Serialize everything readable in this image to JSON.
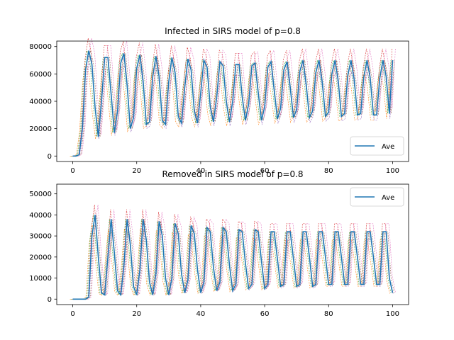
{
  "colors": {
    "ave": "#1f77b4",
    "runs": [
      "#ff7f0e",
      "#2ca02c",
      "#d62728",
      "#9467bd",
      "#8c564b",
      "#e377c2",
      "#7f7f7f",
      "#bcbd22",
      "#17becf"
    ]
  },
  "chart_data": [
    {
      "type": "line",
      "title": "Infected in SIRS model of p=0.8",
      "xlabel": "",
      "ylabel": "",
      "xlim": [
        -5,
        105
      ],
      "ylim": [
        -4000,
        84000
      ],
      "xticks": [
        0,
        20,
        40,
        60,
        80,
        100
      ],
      "yticks": [
        0,
        20000,
        40000,
        60000,
        80000
      ],
      "xtick_labels": [
        "0",
        "20",
        "40",
        "60",
        "80",
        "100"
      ],
      "ytick_labels": [
        "0",
        "20000",
        "40000",
        "60000",
        "80000"
      ],
      "legend": {
        "position": "lower right",
        "entries": [
          "Ave"
        ]
      },
      "grid": false,
      "series": [
        {
          "name": "Ave",
          "style": "solid",
          "x": [
            0,
            1,
            2,
            3,
            4,
            5,
            6,
            7,
            8,
            9,
            10,
            11,
            12,
            13,
            14,
            15,
            16,
            17,
            18,
            19,
            20,
            21,
            22,
            23,
            24,
            25,
            26,
            27,
            28,
            29,
            30,
            31,
            32,
            33,
            34,
            35,
            36,
            37,
            38,
            39,
            40,
            41,
            42,
            43,
            44,
            45,
            46,
            47,
            48,
            49,
            50,
            51,
            52,
            53,
            54,
            55,
            56,
            57,
            58,
            59,
            60,
            61,
            62,
            63,
            64,
            65,
            66,
            67,
            68,
            69,
            70,
            71,
            72,
            73,
            74,
            75,
            76,
            77,
            78,
            79,
            80,
            81,
            82,
            83,
            84,
            85,
            86,
            87,
            88,
            89,
            90,
            91,
            92,
            93,
            94,
            95,
            96,
            97,
            98,
            99,
            100
          ],
          "y": [
            0,
            0,
            1000,
            20000,
            63000,
            77000,
            67000,
            35000,
            14000,
            40000,
            72000,
            72000,
            45000,
            17000,
            33000,
            68000,
            75000,
            52000,
            20000,
            28000,
            64000,
            74000,
            55000,
            23000,
            25000,
            58000,
            73000,
            58000,
            26000,
            23000,
            54000,
            72000,
            61000,
            29000,
            24000,
            50000,
            71000,
            63000,
            33000,
            24000,
            46000,
            70000,
            65000,
            36000,
            25000,
            43000,
            69000,
            66000,
            40000,
            25000,
            40000,
            67000,
            67000,
            43000,
            26000,
            38000,
            66000,
            68000,
            46000,
            26000,
            36000,
            65000,
            69000,
            48000,
            27000,
            35000,
            63000,
            69000,
            50000,
            28000,
            34000,
            62000,
            70000,
            52000,
            28000,
            33000,
            61000,
            70000,
            54000,
            29000,
            32000,
            60000,
            70000,
            55000,
            29000,
            31000,
            59000,
            70000,
            56000,
            30000,
            31000,
            58000,
            70000,
            57000,
            30000,
            30000,
            57000,
            70000,
            58000,
            31000,
            70000
          ]
        }
      ]
    },
    {
      "type": "line",
      "title": "Removed in SIRS model of p=0.8",
      "xlabel": "",
      "ylabel": "",
      "xlim": [
        -5,
        105
      ],
      "ylim": [
        -2600,
        54600
      ],
      "xticks": [
        0,
        20,
        40,
        60,
        80,
        100
      ],
      "yticks": [
        0,
        10000,
        20000,
        30000,
        40000,
        50000
      ],
      "xtick_labels": [
        "0",
        "20",
        "40",
        "60",
        "80",
        "100"
      ],
      "ytick_labels": [
        "0",
        "10000",
        "20000",
        "30000",
        "40000",
        "50000"
      ],
      "legend": {
        "position": "upper right",
        "entries": [
          "Ave"
        ]
      },
      "grid": false,
      "series": [
        {
          "name": "Ave",
          "style": "solid",
          "x": [
            0,
            1,
            2,
            3,
            4,
            5,
            6,
            7,
            8,
            9,
            10,
            11,
            12,
            13,
            14,
            15,
            16,
            17,
            18,
            19,
            20,
            21,
            22,
            23,
            24,
            25,
            26,
            27,
            28,
            29,
            30,
            31,
            32,
            33,
            34,
            35,
            36,
            37,
            38,
            39,
            40,
            41,
            42,
            43,
            44,
            45,
            46,
            47,
            48,
            49,
            50,
            51,
            52,
            53,
            54,
            55,
            56,
            57,
            58,
            59,
            60,
            61,
            62,
            63,
            64,
            65,
            66,
            67,
            68,
            69,
            70,
            71,
            72,
            73,
            74,
            75,
            76,
            77,
            78,
            79,
            80,
            81,
            82,
            83,
            84,
            85,
            86,
            87,
            88,
            89,
            90,
            91,
            92,
            93,
            94,
            95,
            96,
            97,
            98,
            99,
            100
          ],
          "y": [
            0,
            0,
            0,
            0,
            0,
            1000,
            30000,
            40000,
            20000,
            3000,
            2000,
            20000,
            38000,
            22000,
            4000,
            2000,
            16000,
            38000,
            26000,
            6000,
            2000,
            14000,
            38000,
            28000,
            8000,
            2000,
            12000,
            37000,
            30000,
            10000,
            2000,
            10000,
            36000,
            31000,
            12000,
            3000,
            9000,
            35000,
            31000,
            14000,
            3000,
            8000,
            34000,
            32000,
            15000,
            4000,
            8000,
            34000,
            32000,
            16000,
            4000,
            7000,
            33000,
            32000,
            17000,
            5000,
            7000,
            33000,
            32000,
            18000,
            5000,
            7000,
            32000,
            32000,
            19000,
            6000,
            7000,
            32000,
            32000,
            19000,
            6000,
            7000,
            32000,
            32000,
            20000,
            6000,
            7000,
            32000,
            32000,
            20000,
            7000,
            7000,
            32000,
            32000,
            20000,
            7000,
            7000,
            32000,
            32000,
            20000,
            7000,
            7000,
            32000,
            32000,
            20000,
            7000,
            7000,
            32000,
            32000,
            10000,
            3000
          ]
        }
      ]
    }
  ]
}
